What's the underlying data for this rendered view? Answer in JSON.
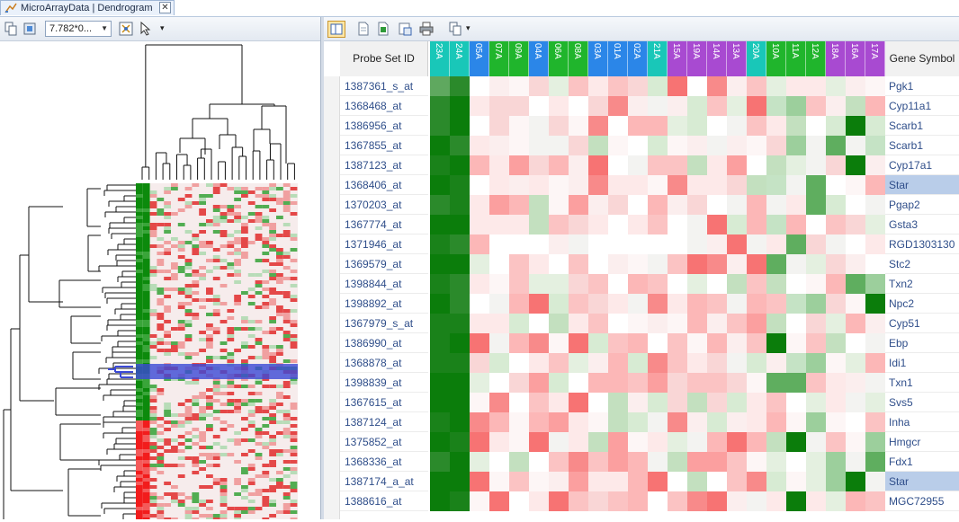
{
  "tab": {
    "title": "MicroArrayData | Dendrogram",
    "close_glyph": "✕"
  },
  "left_toolbar": {
    "zoom_value": "7.782*0...",
    "zoom_arrow": "▼",
    "more_arrow": "▾"
  },
  "right_toolbar": {
    "more_arrow": "▾"
  },
  "table": {
    "probe_header": "Probe Set ID",
    "gene_header": "Gene Symbol",
    "columns": [
      {
        "label": "23A",
        "color": "#19c7b8"
      },
      {
        "label": "24A",
        "color": "#19c7b8"
      },
      {
        "label": "05A",
        "color": "#2b86e8"
      },
      {
        "label": "07A",
        "color": "#20b52c"
      },
      {
        "label": "09A",
        "color": "#20b52c"
      },
      {
        "label": "04A",
        "color": "#2b86e8"
      },
      {
        "label": "06A",
        "color": "#20b52c"
      },
      {
        "label": "08A",
        "color": "#20b52c"
      },
      {
        "label": "03A",
        "color": "#2b86e8"
      },
      {
        "label": "01A",
        "color": "#2b86e8"
      },
      {
        "label": "02A",
        "color": "#2b86e8"
      },
      {
        "label": "21A",
        "color": "#19c7b8"
      },
      {
        "label": "15A",
        "color": "#a84ad1"
      },
      {
        "label": "19A",
        "color": "#a84ad1"
      },
      {
        "label": "14A",
        "color": "#a84ad1"
      },
      {
        "label": "13A",
        "color": "#a84ad1"
      },
      {
        "label": "20A",
        "color": "#19c7b8"
      },
      {
        "label": "10A",
        "color": "#20b52c"
      },
      {
        "label": "11A",
        "color": "#20b52c"
      },
      {
        "label": "12A",
        "color": "#20b52c"
      },
      {
        "label": "18A",
        "color": "#a84ad1"
      },
      {
        "label": "16A",
        "color": "#a84ad1"
      },
      {
        "label": "17A",
        "color": "#a84ad1"
      }
    ],
    "rows": [
      {
        "probe": "1387361_s_at",
        "gene": "Pgk1",
        "selected": false
      },
      {
        "probe": "1368468_at",
        "gene": "Cyp11a1",
        "selected": false
      },
      {
        "probe": "1386956_at",
        "gene": "Scarb1",
        "selected": false
      },
      {
        "probe": "1367855_at",
        "gene": "Scarb1",
        "selected": false
      },
      {
        "probe": "1387123_at",
        "gene": "Cyp17a1",
        "selected": false
      },
      {
        "probe": "1368406_at",
        "gene": "Star",
        "selected": true
      },
      {
        "probe": "1370203_at",
        "gene": "Pgap2",
        "selected": false
      },
      {
        "probe": "1367774_at",
        "gene": "Gsta3",
        "selected": false
      },
      {
        "probe": "1371946_at",
        "gene": "RGD1303130",
        "selected": false
      },
      {
        "probe": "1369579_at",
        "gene": "Stc2",
        "selected": false
      },
      {
        "probe": "1398844_at",
        "gene": "Txn2",
        "selected": false
      },
      {
        "probe": "1398892_at",
        "gene": "Npc2",
        "selected": false
      },
      {
        "probe": "1367979_s_at",
        "gene": "Cyp51",
        "selected": false
      },
      {
        "probe": "1386990_at",
        "gene": "Ebp",
        "selected": false
      },
      {
        "probe": "1368878_at",
        "gene": "Idi1",
        "selected": false
      },
      {
        "probe": "1398839_at",
        "gene": "Txn1",
        "selected": false
      },
      {
        "probe": "1367615_at",
        "gene": "Svs5",
        "selected": false
      },
      {
        "probe": "1387124_at",
        "gene": "Inha",
        "selected": false
      },
      {
        "probe": "1375852_at",
        "gene": "Hmgcr",
        "selected": false
      },
      {
        "probe": "1368336_at",
        "gene": "Fdx1",
        "selected": false
      },
      {
        "probe": "1387174_a_at",
        "gene": "Star",
        "selected": true
      },
      {
        "probe": "1388616_at",
        "gene": "MGC72955",
        "selected": false
      }
    ]
  },
  "colors": {
    "high": "#0b7d0b",
    "low": "#f7d0d0",
    "selection": "#b9cde9",
    "cluster_highlight": "#3b49d6"
  }
}
